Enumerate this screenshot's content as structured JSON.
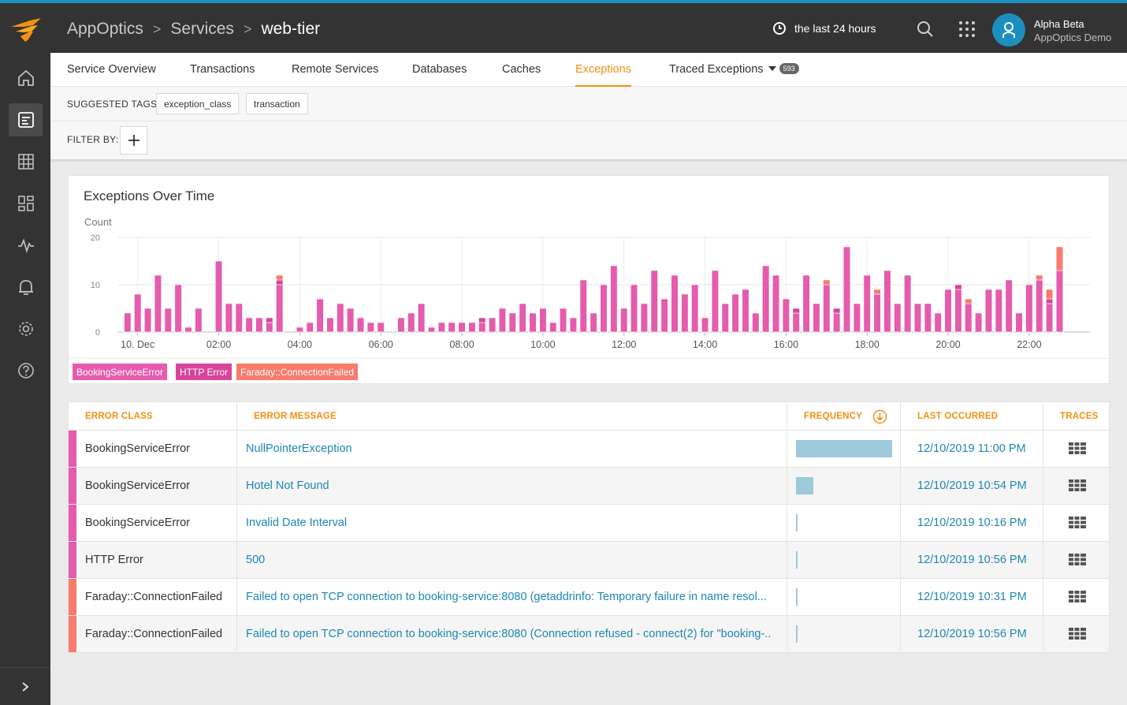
{
  "header": {
    "breadcrumb": [
      "AppOptics",
      "Services",
      "web-tier"
    ],
    "time_range": "the last 24 hours",
    "user_name": "Alpha Beta",
    "user_org": "AppOptics Demo",
    "icons": [
      "solarwinds-logo-icon",
      "clock-icon",
      "search-icon",
      "app-grid-icon",
      "user-icon"
    ]
  },
  "sidebar": {
    "items": [
      "home-icon",
      "services-icon",
      "grid-icon",
      "dashboards-icon",
      "pulse-icon",
      "alerts-bell-icon",
      "settings-gear-icon",
      "help-icon"
    ],
    "active": "services-icon"
  },
  "tabs": {
    "items": [
      "Service Overview",
      "Transactions",
      "Remote Services",
      "Databases",
      "Caches",
      "Exceptions",
      "Traced Exceptions"
    ],
    "active": "Exceptions",
    "traced_count": "593"
  },
  "suggested_tags": {
    "label": "SUGGESTED TAGS:",
    "tags": [
      "exception_class",
      "transaction"
    ]
  },
  "filter": {
    "label": "FILTER BY:"
  },
  "chart_card": {
    "title": "Exceptions Over Time",
    "y_axis_title": "Count"
  },
  "chart_data": {
    "type": "bar",
    "stacked": true,
    "title": "Exceptions Over Time",
    "ylabel": "Count",
    "ylim": [
      0,
      20
    ],
    "yticks": [
      0,
      10,
      20
    ],
    "xticks": [
      "10. Dec",
      "02:00",
      "04:00",
      "06:00",
      "08:00",
      "10:00",
      "12:00",
      "14:00",
      "16:00",
      "18:00",
      "20:00",
      "22:00"
    ],
    "xlim_hours": [
      -0.5,
      23.5
    ],
    "bar_width_hours": 0.1667,
    "colors": {
      "BookingServiceError": "#e55cae",
      "HTTP Error": "#d8449a",
      "Faraday::ConnectionFailed": "#f87b6e"
    },
    "grid": true,
    "legend_position": "bottom-left",
    "series": [
      {
        "name": "BookingServiceError",
        "x_hours": [
          -0.25,
          0.0,
          0.25,
          0.5,
          0.75,
          1.0,
          1.25,
          1.5,
          2.0,
          2.25,
          2.5,
          2.75,
          3.0,
          3.25,
          3.5,
          4.0,
          4.25,
          4.5,
          4.75,
          5.0,
          5.25,
          5.5,
          5.75,
          6.0,
          6.25,
          6.5,
          6.75,
          7.0,
          7.25,
          7.5,
          7.75,
          8.0,
          8.25,
          8.5,
          8.75,
          9.0,
          9.25,
          9.5,
          9.75,
          10.0,
          10.25,
          10.5,
          10.75,
          11.0,
          11.25,
          11.5,
          11.75,
          12.0,
          12.25,
          12.5,
          12.75,
          13.0,
          13.25,
          13.5,
          13.75,
          14.0,
          14.25,
          14.5,
          14.75,
          15.0,
          15.25,
          15.5,
          15.75,
          16.0,
          16.25,
          16.5,
          16.75,
          17.0,
          17.25,
          17.5,
          17.75,
          18.0,
          18.25,
          18.5,
          18.75,
          19.0,
          19.25,
          19.5,
          19.75,
          20.0,
          20.25,
          20.5,
          20.75,
          21.0,
          21.25,
          21.5,
          21.75,
          22.0,
          22.25,
          22.5,
          22.75
        ],
        "values": [
          4,
          8,
          5,
          12,
          5,
          10,
          1,
          5,
          15,
          6,
          6,
          3,
          3,
          2,
          10,
          1,
          2,
          7,
          3,
          6,
          5,
          3,
          2,
          2,
          0,
          3,
          4,
          6,
          1,
          2,
          2,
          2,
          2,
          2,
          3,
          5,
          4,
          6,
          4,
          5,
          2,
          5,
          3,
          11,
          4,
          10,
          14,
          5,
          10,
          6,
          13,
          7,
          12,
          8,
          10,
          3,
          13,
          6,
          8,
          9,
          4,
          14,
          12,
          7,
          4,
          12,
          6,
          10,
          4,
          18,
          6,
          12,
          8,
          13,
          6,
          12,
          6,
          6,
          4,
          9,
          9,
          6,
          4,
          9,
          9,
          11,
          4,
          10,
          11,
          6,
          13
        ]
      },
      {
        "name": "HTTP Error",
        "x_hours": [
          0.0,
          0.25,
          0.5,
          0.75,
          1.0,
          1.25,
          1.5,
          2.0,
          2.25,
          2.5,
          2.75,
          3.0,
          3.25,
          3.5,
          4.0,
          4.25,
          4.5,
          4.75,
          5.0,
          5.25,
          5.5,
          5.75,
          6.0,
          6.25,
          6.5,
          6.75,
          7.0,
          7.25,
          7.5,
          7.75,
          8.0,
          8.25,
          8.5,
          8.75,
          9.0,
          9.25,
          9.5,
          9.75,
          10.0,
          10.25,
          10.5,
          10.75,
          11.0,
          11.25,
          11.5,
          11.75,
          12.0,
          12.25,
          12.5,
          12.75,
          13.0,
          13.25,
          13.5,
          13.75,
          14.0,
          14.25,
          14.5,
          14.75,
          15.0,
          15.25,
          15.5,
          15.75,
          16.0,
          16.25,
          16.5,
          16.75,
          17.0,
          17.25,
          17.5,
          17.75,
          18.0,
          18.25,
          18.5,
          18.75,
          19.0,
          19.25,
          19.5,
          19.75,
          20.0,
          20.25,
          20.5,
          20.75,
          21.0,
          21.25,
          21.5,
          21.75,
          22.0,
          22.25,
          22.5,
          22.75
        ],
        "values": [
          0,
          0,
          0,
          0,
          0,
          0,
          0,
          0,
          0,
          0,
          0,
          0,
          1,
          1,
          0,
          0,
          0,
          0,
          0,
          0,
          0,
          0,
          0,
          0,
          0,
          0,
          0,
          0,
          0,
          0,
          0,
          0,
          1,
          0,
          0,
          0,
          0,
          0,
          0,
          0,
          0,
          0,
          0,
          0,
          0,
          0,
          0,
          0,
          0,
          0,
          0,
          0,
          0,
          0,
          0,
          0,
          0,
          0,
          0,
          0,
          0,
          0,
          0,
          1,
          0,
          0,
          0,
          1,
          0,
          0,
          0,
          0,
          0,
          0,
          0,
          0,
          0,
          0,
          0,
          1,
          0,
          0,
          0,
          0,
          0,
          0,
          0,
          0,
          1,
          0
        ]
      },
      {
        "name": "Faraday::ConnectionFailed",
        "x_hours": [
          2.75,
          3.0,
          3.25,
          3.5,
          8.25,
          8.5,
          12.5,
          12.75,
          13.0,
          17.0,
          18.25,
          19.0,
          20.5,
          22.0,
          22.25,
          22.5,
          22.75
        ],
        "values": [
          0,
          0,
          0,
          1,
          0,
          0,
          0,
          0,
          0,
          1,
          1,
          0,
          1,
          0,
          1,
          2,
          5
        ]
      }
    ]
  },
  "legend": [
    "BookingServiceError",
    "HTTP Error",
    "Faraday::ConnectionFailed"
  ],
  "legend_colors": [
    "#e55cae",
    "#d8449a",
    "#f87b6e"
  ],
  "table": {
    "headers": [
      "ERROR CLASS",
      "ERROR MESSAGE",
      "FREQUENCY",
      "LAST OCCURRED",
      "TRACES"
    ],
    "sort_icon": "sort-descending-icon",
    "trace_icon": "traces-grid-icon",
    "rows": [
      {
        "error_class": "BookingServiceError",
        "message": "NullPointerException",
        "frequency": 1.0,
        "last_occurred": "12/10/2019 11:00 PM",
        "stripe": "#e55cae"
      },
      {
        "error_class": "BookingServiceError",
        "message": "Hotel Not Found",
        "frequency": 0.18,
        "last_occurred": "12/10/2019 10:54 PM",
        "stripe": "#e55cae"
      },
      {
        "error_class": "BookingServiceError",
        "message": "Invalid Date Interval",
        "frequency": 0.02,
        "last_occurred": "12/10/2019 10:16 PM",
        "stripe": "#e55cae"
      },
      {
        "error_class": "HTTP Error",
        "message": "500",
        "frequency": 0.02,
        "last_occurred": "12/10/2019 10:56 PM",
        "stripe": "#e55cae"
      },
      {
        "error_class": "Faraday::ConnectionFailed",
        "message": "Failed to open TCP connection to booking-service:8080 (getaddrinfo: Temporary failure in name resol...",
        "frequency": 0.01,
        "last_occurred": "12/10/2019 10:31 PM",
        "stripe": "#f87b6e"
      },
      {
        "error_class": "Faraday::ConnectionFailed",
        "message": "Failed to open TCP connection to booking-service:8080 (Connection refused - connect(2) for \"booking-...",
        "frequency": 0.01,
        "last_occurred": "12/10/2019 10:56 PM",
        "stripe": "#f87b6e"
      }
    ]
  }
}
